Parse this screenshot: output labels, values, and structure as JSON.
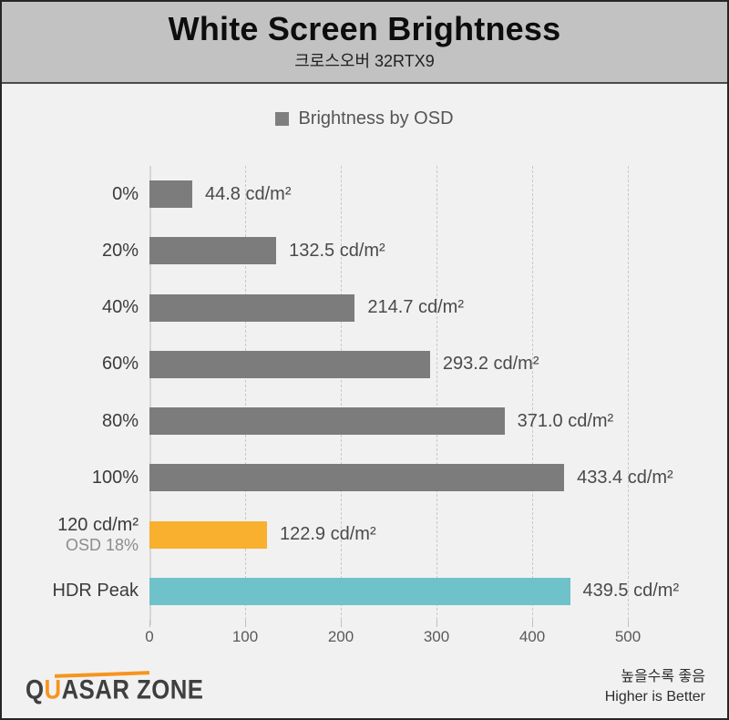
{
  "header": {
    "title": "White Screen Brightness",
    "subtitle": "크로스오버 32RTX9"
  },
  "legend": {
    "label": "Brightness by OSD",
    "swatch_color": "#7f7f7f"
  },
  "chart_data": {
    "type": "bar",
    "orientation": "horizontal",
    "title": "White Screen Brightness",
    "subtitle": "크로스오버 32RTX9",
    "legend": [
      "Brightness by OSD"
    ],
    "legend_position": "top-center",
    "unit": "cd/m²",
    "xlim": [
      0,
      500
    ],
    "x_ticks": [
      0,
      100,
      200,
      300,
      400,
      500
    ],
    "grid": "vertical-dashed",
    "categories": [
      "0%",
      "20%",
      "40%",
      "60%",
      "80%",
      "100%",
      "120 cd/m²",
      "HDR Peak"
    ],
    "category_sublabels": [
      "",
      "",
      "",
      "",
      "",
      "",
      "OSD 18%",
      ""
    ],
    "values": [
      44.8,
      132.5,
      214.7,
      293.2,
      371.0,
      433.4,
      122.9,
      439.5
    ],
    "value_labels": [
      "44.8 cd/m²",
      "132.5 cd/m²",
      "214.7 cd/m²",
      "293.2 cd/m²",
      "371.0 cd/m²",
      "433.4 cd/m²",
      "122.9 cd/m²",
      "439.5 cd/m²"
    ],
    "bar_colors": [
      "#7c7c7c",
      "#7c7c7c",
      "#7c7c7c",
      "#7c7c7c",
      "#7c7c7c",
      "#7c7c7c",
      "#f8b02e",
      "#6fc2ca"
    ]
  },
  "footer": {
    "logo": {
      "part_q": "Q",
      "part_u": "U",
      "part_rest": "ASAR ZONE"
    },
    "note_line1": "높을수록 좋음",
    "note_line2": "Higher is Better"
  },
  "colors": {
    "page_background": "#f1f1f2",
    "header_background": "#c2c2c3",
    "outer_border": "#262626",
    "bar_gray": "#7c7c7c",
    "bar_orange": "#f8b02e",
    "bar_teal": "#6fc2ca",
    "logo_orange": "#f7941e"
  }
}
